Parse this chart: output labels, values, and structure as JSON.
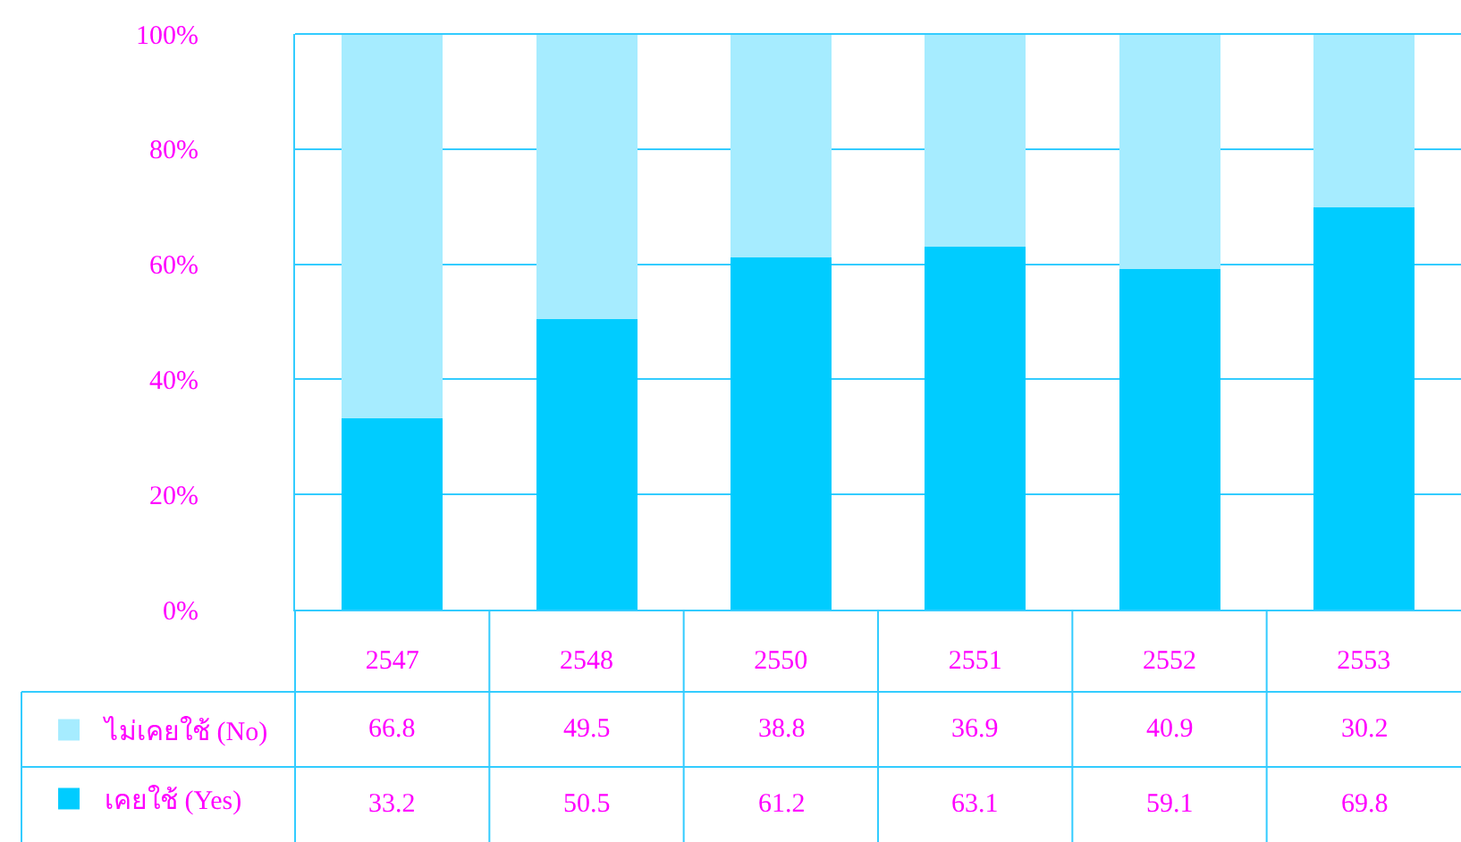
{
  "chart_data": {
    "type": "bar",
    "stacked": true,
    "categories": [
      "2547",
      "2548",
      "2550",
      "2551",
      "2552",
      "2553"
    ],
    "series": [
      {
        "name": "เคยใช้ (Yes)",
        "color": "#00ccff",
        "values": [
          33.2,
          50.5,
          61.2,
          63.1,
          59.1,
          69.8
        ]
      },
      {
        "name": "ไม่เคยใช้ (No)",
        "color": "#a6ecff",
        "values": [
          66.8,
          49.5,
          38.8,
          36.9,
          40.9,
          30.2
        ]
      }
    ],
    "ylim": [
      0,
      100
    ],
    "yticks": [
      {
        "value": 0,
        "label": "0%"
      },
      {
        "value": 20,
        "label": "20%"
      },
      {
        "value": 40,
        "label": "40%"
      },
      {
        "value": 60,
        "label": "60%"
      },
      {
        "value": 80,
        "label": "80%"
      },
      {
        "value": 100,
        "label": "100%"
      }
    ],
    "grid": "y",
    "legend": "bottom left",
    "data_labels": true
  }
}
